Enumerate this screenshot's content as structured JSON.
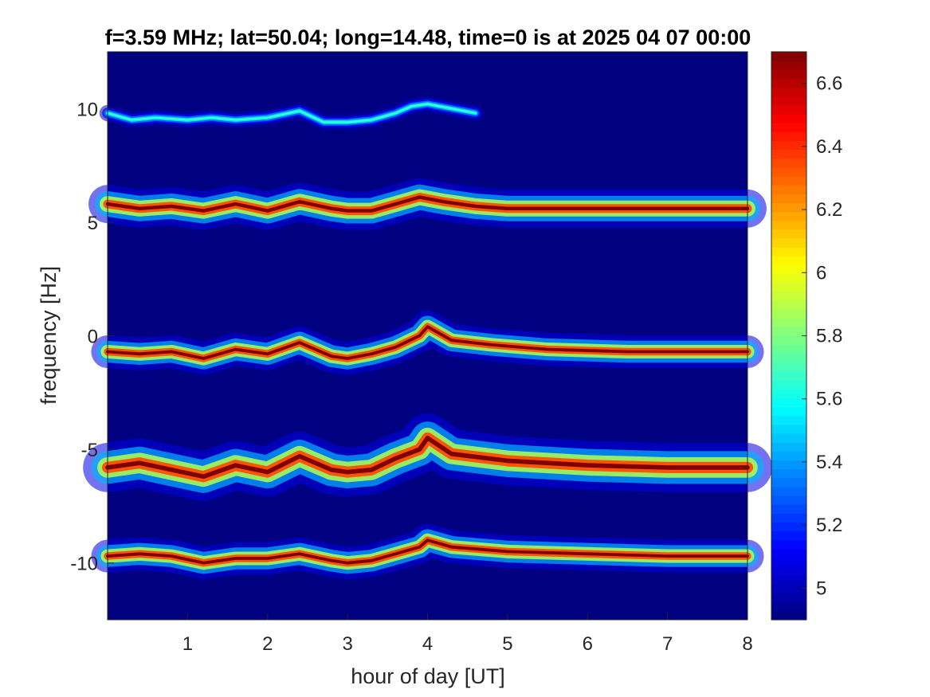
{
  "chart_data": {
    "type": "heatmap",
    "title": "f=3.59 MHz;  lat=50.04; long=14.48, time=0 is at 2025 04 07 00:00",
    "xlabel": "hour of day [UT]",
    "ylabel": "frequency [Hz]",
    "xlim": [
      0,
      8
    ],
    "ylim": [
      -12.5,
      12.5
    ],
    "xticks": [
      1,
      2,
      3,
      4,
      5,
      6,
      7,
      8
    ],
    "yticks": [
      -10,
      -5,
      0,
      5,
      10
    ],
    "colormap": "jet",
    "clim": [
      4.9,
      6.7
    ],
    "colorbar_ticks": [
      5,
      5.2,
      5.4,
      5.6,
      5.8,
      6,
      6.2,
      6.4,
      6.6
    ],
    "background_value": 4.9,
    "traces": [
      {
        "trace": "top",
        "points": [
          [
            0.0,
            9.8
          ],
          [
            0.3,
            9.5
          ],
          [
            0.6,
            9.6
          ],
          [
            1.0,
            9.5
          ],
          [
            1.3,
            9.6
          ],
          [
            1.6,
            9.5
          ],
          [
            2.0,
            9.6
          ],
          [
            2.4,
            9.9
          ],
          [
            2.7,
            9.4
          ],
          [
            3.0,
            9.4
          ],
          [
            3.3,
            9.5
          ],
          [
            3.6,
            9.8
          ],
          [
            3.8,
            10.1
          ],
          [
            4.0,
            10.2
          ],
          [
            4.3,
            10.0
          ],
          [
            4.6,
            9.8
          ]
        ],
        "peak": 5.7,
        "width": 0.15
      },
      {
        "trace": "upper",
        "points": [
          [
            0.0,
            5.8
          ],
          [
            0.4,
            5.6
          ],
          [
            0.8,
            5.7
          ],
          [
            1.2,
            5.5
          ],
          [
            1.6,
            5.8
          ],
          [
            2.0,
            5.5
          ],
          [
            2.4,
            5.9
          ],
          [
            2.8,
            5.6
          ],
          [
            3.0,
            5.5
          ],
          [
            3.3,
            5.5
          ],
          [
            3.6,
            5.8
          ],
          [
            3.9,
            6.1
          ],
          [
            4.2,
            5.9
          ],
          [
            4.6,
            5.7
          ],
          [
            5.0,
            5.6
          ],
          [
            6.0,
            5.6
          ],
          [
            8.0,
            5.6
          ]
        ],
        "peak": 6.7,
        "width": 0.35
      },
      {
        "trace": "middle",
        "points": [
          [
            0.0,
            -0.7
          ],
          [
            0.4,
            -0.8
          ],
          [
            0.8,
            -0.7
          ],
          [
            1.2,
            -1.0
          ],
          [
            1.6,
            -0.6
          ],
          [
            2.0,
            -0.8
          ],
          [
            2.4,
            -0.3
          ],
          [
            2.8,
            -0.9
          ],
          [
            3.0,
            -1.0
          ],
          [
            3.3,
            -0.8
          ],
          [
            3.6,
            -0.5
          ],
          [
            3.9,
            0.0
          ],
          [
            4.0,
            0.4
          ],
          [
            4.3,
            -0.2
          ],
          [
            4.8,
            -0.4
          ],
          [
            5.5,
            -0.6
          ],
          [
            6.5,
            -0.7
          ],
          [
            8.0,
            -0.7
          ]
        ],
        "peak": 6.7,
        "width": 0.3
      },
      {
        "trace": "lower",
        "points": [
          [
            0.0,
            -5.8
          ],
          [
            0.4,
            -5.6
          ],
          [
            0.8,
            -5.9
          ],
          [
            1.2,
            -6.2
          ],
          [
            1.6,
            -5.7
          ],
          [
            2.0,
            -6.0
          ],
          [
            2.4,
            -5.3
          ],
          [
            2.8,
            -5.9
          ],
          [
            3.0,
            -6.0
          ],
          [
            3.3,
            -5.9
          ],
          [
            3.6,
            -5.4
          ],
          [
            3.9,
            -5.0
          ],
          [
            4.0,
            -4.5
          ],
          [
            4.3,
            -5.2
          ],
          [
            5.0,
            -5.5
          ],
          [
            6.0,
            -5.7
          ],
          [
            7.0,
            -5.8
          ],
          [
            8.0,
            -5.8
          ]
        ],
        "peak": 6.7,
        "width": 0.45
      },
      {
        "trace": "bottom",
        "points": [
          [
            0.0,
            -9.7
          ],
          [
            0.4,
            -9.6
          ],
          [
            0.8,
            -9.7
          ],
          [
            1.2,
            -10.0
          ],
          [
            1.6,
            -9.8
          ],
          [
            2.0,
            -9.8
          ],
          [
            2.4,
            -9.6
          ],
          [
            2.8,
            -9.9
          ],
          [
            3.0,
            -10.0
          ],
          [
            3.3,
            -9.9
          ],
          [
            3.6,
            -9.6
          ],
          [
            3.9,
            -9.3
          ],
          [
            4.0,
            -9.0
          ],
          [
            4.3,
            -9.3
          ],
          [
            5.0,
            -9.5
          ],
          [
            6.0,
            -9.6
          ],
          [
            7.0,
            -9.7
          ],
          [
            8.0,
            -9.7
          ]
        ],
        "peak": 6.7,
        "width": 0.3
      }
    ],
    "colors": {
      "background": "#00008f",
      "axis": "#262626"
    }
  }
}
